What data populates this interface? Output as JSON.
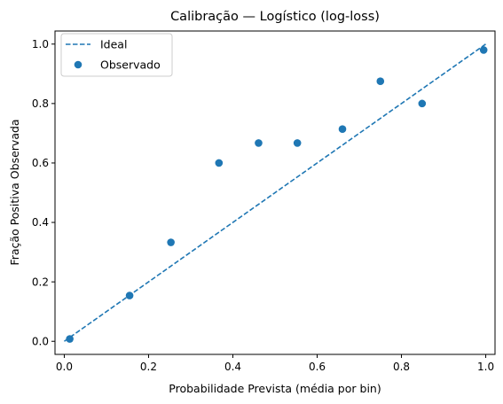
{
  "chart_data": {
    "type": "scatter",
    "title": "Calibração — Logístico (log-loss)",
    "xlabel": "Probabilidade Prevista (média por bin)",
    "ylabel": "Fração Positiva Observada",
    "xlim": [
      -0.022,
      1.022
    ],
    "ylim": [
      -0.044,
      1.044
    ],
    "xticks": [
      "0.0",
      "0.2",
      "0.4",
      "0.6",
      "0.8",
      "1.0"
    ],
    "yticks": [
      "0.0",
      "0.2",
      "0.4",
      "0.6",
      "0.8",
      "1.0"
    ],
    "grid": false,
    "legend_position": "top-left",
    "series": [
      {
        "name": "Ideal",
        "kind": "line",
        "style": "dashed",
        "color": "#1f77b4",
        "x": [
          0,
          1
        ],
        "y": [
          0,
          1
        ]
      },
      {
        "name": "Observado",
        "kind": "scatter",
        "color": "#1f77b4",
        "x": [
          0.013,
          0.155,
          0.253,
          0.367,
          0.461,
          0.553,
          0.66,
          0.75,
          0.849,
          0.995
        ],
        "y": [
          0.008,
          0.154,
          0.333,
          0.6,
          0.667,
          0.667,
          0.714,
          0.875,
          0.8,
          0.98
        ]
      }
    ]
  }
}
